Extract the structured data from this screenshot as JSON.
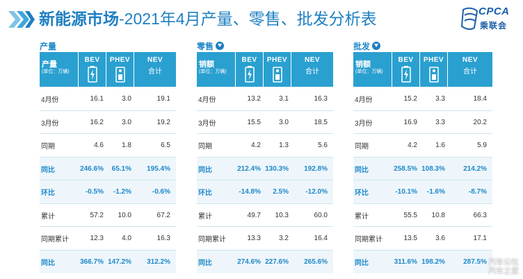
{
  "header": {
    "title_bold": "新能源市场",
    "title_rest": "-2021年4月产量、零售、批发分析表",
    "logo_text": "CPCA",
    "logo_sub": "乘联会"
  },
  "columns": {
    "bev": "BEV",
    "phev": "PHEV",
    "nev_line1": "NEV",
    "nev_line2": "合计",
    "unit": "(单位：万辆)"
  },
  "colors": {
    "accent": "#1e88c9",
    "header_bg": "#2aa0d0",
    "title": "#1e7fc2"
  },
  "panels": [
    {
      "name": "产量",
      "label_head": "产量",
      "has_arrow": false,
      "rows": [
        {
          "label": "4月份",
          "bev": "16.1",
          "phev": "3.0",
          "nev": "19.1",
          "style": "normal"
        },
        {
          "label": "3月份",
          "bev": "16.2",
          "phev": "3.0",
          "nev": "19.2",
          "style": "normal"
        },
        {
          "label": "同期",
          "bev": "4.6",
          "phev": "1.8",
          "nev": "6.5",
          "style": "normal"
        },
        {
          "label": "同比",
          "bev": "246.6%",
          "phev": "65.1%",
          "nev": "195.4%",
          "style": "blue"
        },
        {
          "label": "环比",
          "bev": "-0.5%",
          "phev": "-1.2%",
          "nev": "-0.6%",
          "style": "blue"
        },
        {
          "label": "累计",
          "bev": "57.2",
          "phev": "10.0",
          "nev": "67.2",
          "style": "normal"
        },
        {
          "label": "同期累计",
          "bev": "12.3",
          "phev": "4.0",
          "nev": "16.3",
          "style": "normal"
        },
        {
          "label": "同比",
          "bev": "366.7%",
          "phev": "147.2%",
          "nev": "312.2%",
          "style": "blue"
        }
      ]
    },
    {
      "name": "零售",
      "label_head": "销额",
      "has_arrow": true,
      "rows": [
        {
          "label": "4月份",
          "bev": "13.2",
          "phev": "3.1",
          "nev": "16.3",
          "style": "normal"
        },
        {
          "label": "3月份",
          "bev": "15.5",
          "phev": "3.0",
          "nev": "18.5",
          "style": "normal"
        },
        {
          "label": "同期",
          "bev": "4.2",
          "phev": "1.3",
          "nev": "5.6",
          "style": "normal"
        },
        {
          "label": "同比",
          "bev": "212.4%",
          "phev": "130.3%",
          "nev": "192.8%",
          "style": "blue"
        },
        {
          "label": "环比",
          "bev": "-14.8%",
          "phev": "2.5%",
          "nev": "-12.0%",
          "style": "blue"
        },
        {
          "label": "累计",
          "bev": "49.7",
          "phev": "10.3",
          "nev": "60.0",
          "style": "normal"
        },
        {
          "label": "同期累计",
          "bev": "13.3",
          "phev": "3.2",
          "nev": "16.4",
          "style": "normal"
        },
        {
          "label": "同比",
          "bev": "274.6%",
          "phev": "227.6%",
          "nev": "265.6%",
          "style": "blue"
        }
      ]
    },
    {
      "name": "批发",
      "label_head": "销额",
      "has_arrow": true,
      "rows": [
        {
          "label": "4月份",
          "bev": "15.2",
          "phev": "3.3",
          "nev": "18.4",
          "style": "normal"
        },
        {
          "label": "3月份",
          "bev": "16.9",
          "phev": "3.3",
          "nev": "20.2",
          "style": "normal"
        },
        {
          "label": "同期",
          "bev": "4.2",
          "phev": "1.6",
          "nev": "5.9",
          "style": "normal"
        },
        {
          "label": "同比",
          "bev": "258.5%",
          "phev": "108.3%",
          "nev": "214.2%",
          "style": "blue"
        },
        {
          "label": "环比",
          "bev": "-10.1%",
          "phev": "-1.6%",
          "nev": "-8.7%",
          "style": "blue"
        },
        {
          "label": "累计",
          "bev": "55.5",
          "phev": "10.8",
          "nev": "66.3",
          "style": "normal"
        },
        {
          "label": "同期累计",
          "bev": "13.5",
          "phev": "3.6",
          "nev": "17.1",
          "style": "normal"
        },
        {
          "label": "同比",
          "bev": "311.6%",
          "phev": "198.2%",
          "nev": "287.5%",
          "style": "blue"
        }
      ]
    }
  ],
  "watermark": {
    "line1": "汽车公社",
    "line2": "汽车之家"
  }
}
